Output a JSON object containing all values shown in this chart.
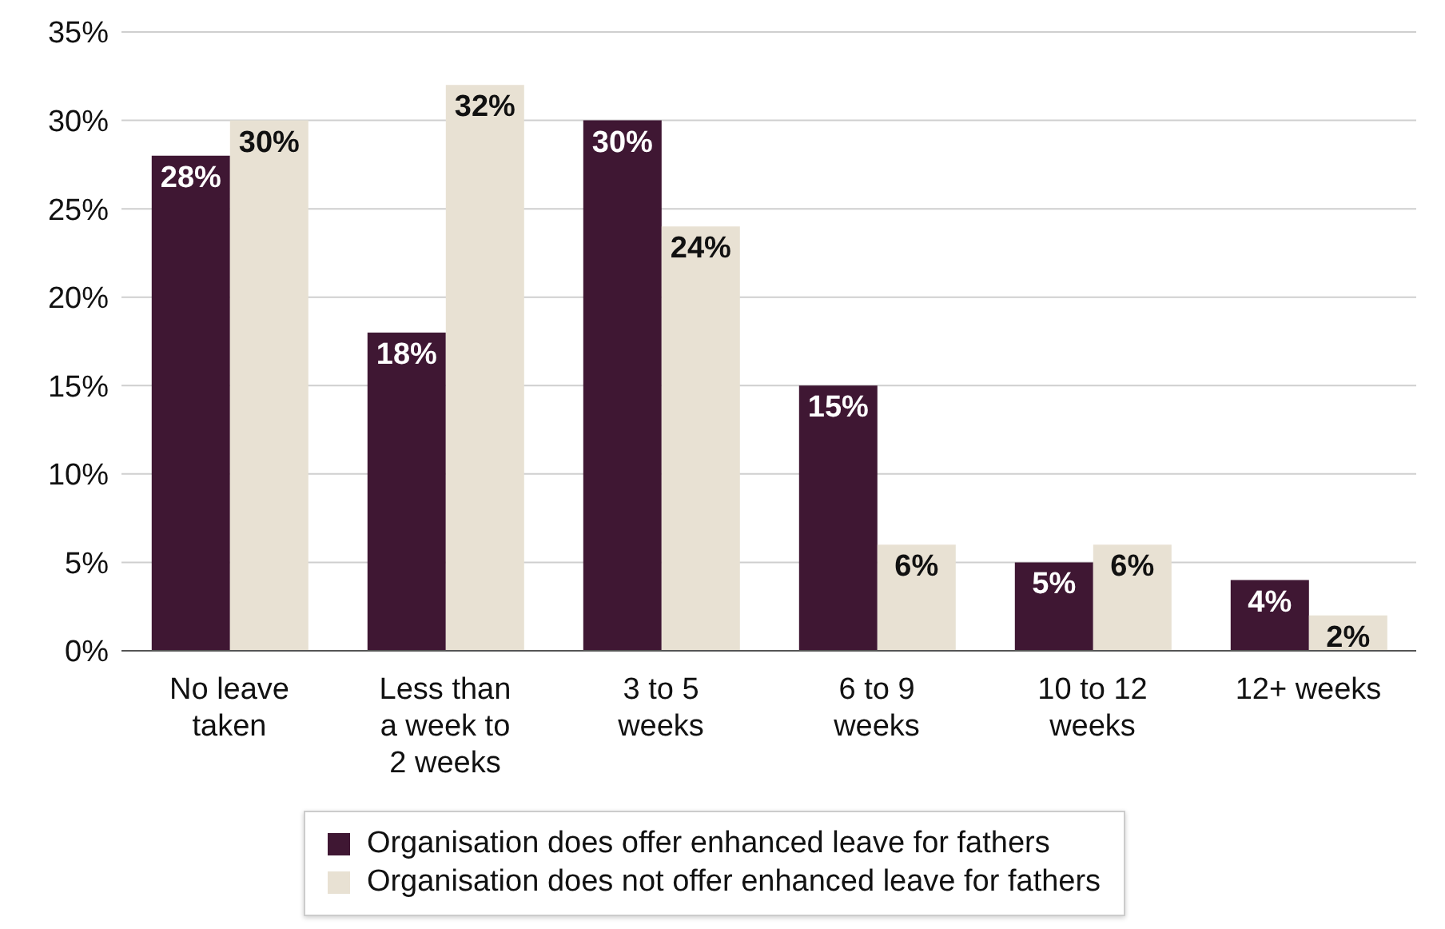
{
  "chart_data": {
    "type": "bar",
    "categories": [
      "No leave taken",
      "Less than a week to 2 weeks",
      "3 to 5 weeks",
      "6 to 9 weeks",
      "10 to 12 weeks",
      "12+ weeks"
    ],
    "series": [
      {
        "name": "Organisation does offer enhanced leave for fathers",
        "color": "#3f1733",
        "values": [
          28,
          18,
          30,
          15,
          5,
          4
        ],
        "value_labels": [
          "28%",
          "18%",
          "30%",
          "15%",
          "5%",
          "4%"
        ]
      },
      {
        "name": "Organisation does not offer enhanced leave for fathers",
        "color": "#e8e1d3",
        "values": [
          30,
          32,
          24,
          6,
          6,
          2
        ],
        "value_labels": [
          "30%",
          "32%",
          "24%",
          "6%",
          "6%",
          "2%"
        ]
      }
    ],
    "ylim": [
      0,
      35
    ],
    "yticks": [
      {
        "value": 0,
        "label": "0%"
      },
      {
        "value": 5,
        "label": "5%"
      },
      {
        "value": 10,
        "label": "10%"
      },
      {
        "value": 15,
        "label": "15%"
      },
      {
        "value": 20,
        "label": "20%"
      },
      {
        "value": 25,
        "label": "25%"
      },
      {
        "value": 30,
        "label": "30%"
      },
      {
        "value": 35,
        "label": "35%"
      }
    ],
    "grid": "y",
    "legend": "bottom"
  }
}
